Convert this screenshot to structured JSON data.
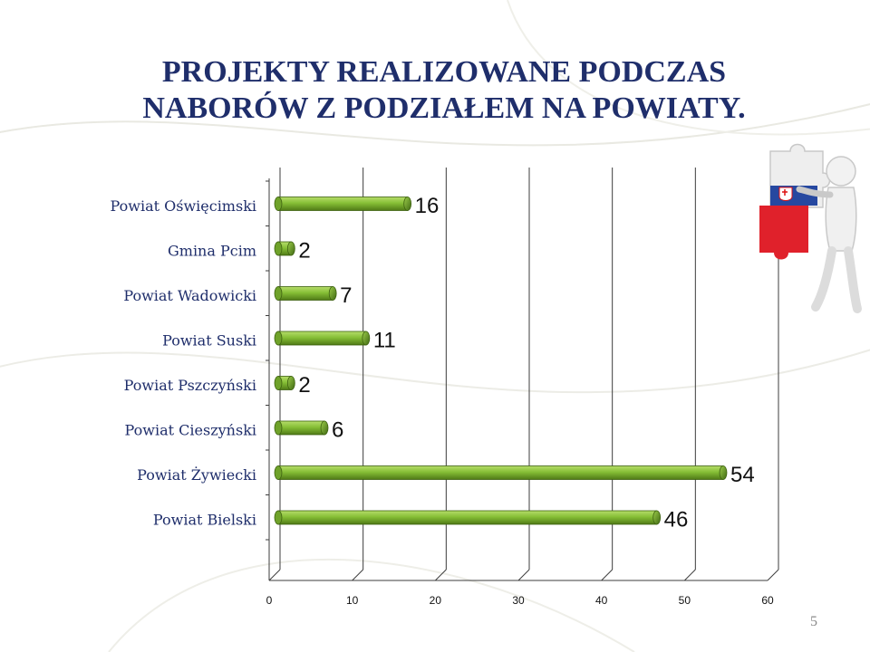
{
  "slide": {
    "title_lines": [
      "PROJEKTY REALIZOWANE PODCZAS",
      "NABORÓW Z PODZIAŁEM NA POWIATY."
    ],
    "page_number": "5"
  },
  "colors": {
    "title": "#1f2e6b",
    "bar_light": "#b6dd6a",
    "bar_mid": "#86bf36",
    "bar_dark": "#4f7a16",
    "grid": "#3c3c3c"
  },
  "icons": {
    "mascot": "puzzle-figure-with-flag-pieces-icon"
  },
  "chart_data": {
    "type": "bar",
    "orientation": "horizontal",
    "style": "3d-cylinder",
    "categories": [
      "Powiat Oświęcimski",
      "Gmina Pcim",
      "Powiat Wadowicki",
      "Powiat Suski",
      "Powiat Pszczyński",
      "Powiat Cieszyński",
      "Powiat Żywiecki",
      "Powiat Bielski"
    ],
    "values": [
      16,
      2,
      7,
      11,
      2,
      6,
      54,
      46
    ],
    "value_labels": [
      "16",
      "2",
      "7",
      "11",
      "2",
      "6",
      "54",
      "46"
    ],
    "xlim": [
      0,
      60
    ],
    "xticks": [
      "0",
      "10",
      "20",
      "30",
      "40",
      "50",
      "60"
    ],
    "grid": true,
    "legend": "none"
  }
}
